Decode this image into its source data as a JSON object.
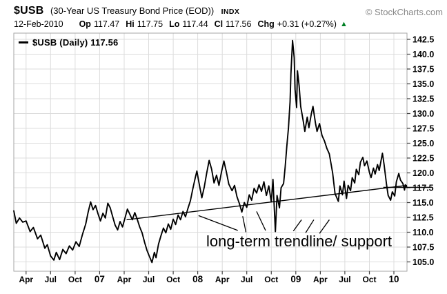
{
  "header": {
    "symbol": "$USB",
    "title": "(30-Year US Treasury Bond Price (EOD))",
    "exchange": "INDX",
    "copyright": "© StockCharts.com",
    "date": "12-Feb-2010",
    "ohlc": [
      {
        "label": "Op",
        "value": "117.47"
      },
      {
        "label": "Hi",
        "value": "117.75"
      },
      {
        "label": "Lo",
        "value": "117.44"
      },
      {
        "label": "Cl",
        "value": "117.56"
      },
      {
        "label": "Chg",
        "value": "+0.31 (+0.27%)"
      }
    ],
    "change_direction": "up",
    "up_color": "#008024"
  },
  "icons": {
    "up_triangle": "▲"
  },
  "legend": {
    "line_label": "$USB (Daily) 117.56"
  },
  "annotation": {
    "text": "long-term trendline/ support"
  },
  "chart_data": {
    "type": "line",
    "title": "$USB (Daily)",
    "last_price": 117.56,
    "x_unit": "months since mid-Feb-2006",
    "x_range": [
      0,
      48.1
    ],
    "y_label_range": [
      105.0,
      142.5
    ],
    "y_tick_step": 2.5,
    "grid": true,
    "line_color": "#000000",
    "grid_color": "#dcdcdc",
    "frame_color": "#a6a6a6",
    "tick_color": "#444444",
    "y_ticks": [
      142.5,
      140.0,
      137.5,
      135.0,
      132.5,
      130.0,
      127.5,
      125.0,
      122.5,
      120.0,
      117.5,
      115.0,
      112.5,
      110.0,
      107.5,
      105.0
    ],
    "x_ticks": [
      {
        "m": 1.5,
        "label": "Apr",
        "year": false
      },
      {
        "m": 4.5,
        "label": "Jul",
        "year": false
      },
      {
        "m": 7.5,
        "label": "Oct",
        "year": false
      },
      {
        "m": 10.5,
        "label": "07",
        "year": true
      },
      {
        "m": 13.5,
        "label": "Apr",
        "year": false
      },
      {
        "m": 16.5,
        "label": "Jul",
        "year": false
      },
      {
        "m": 19.5,
        "label": "Oct",
        "year": false
      },
      {
        "m": 22.5,
        "label": "08",
        "year": true
      },
      {
        "m": 25.5,
        "label": "Apr",
        "year": false
      },
      {
        "m": 28.5,
        "label": "Jul",
        "year": false
      },
      {
        "m": 31.5,
        "label": "Oct",
        "year": false
      },
      {
        "m": 34.5,
        "label": "09",
        "year": true
      },
      {
        "m": 37.5,
        "label": "Apr",
        "year": false
      },
      {
        "m": 40.5,
        "label": "Jul",
        "year": false
      },
      {
        "m": 43.5,
        "label": "Oct",
        "year": false
      },
      {
        "m": 46.5,
        "label": "10",
        "year": true
      }
    ],
    "series": [
      {
        "name": "$USB (Daily)",
        "color": "#000000",
        "points": [
          [
            0,
            113.6
          ],
          [
            0.3,
            111.5
          ],
          [
            0.7,
            112.4
          ],
          [
            1.1,
            111.7
          ],
          [
            1.5,
            111.9
          ],
          [
            2,
            110.1
          ],
          [
            2.4,
            110.8
          ],
          [
            2.9,
            108.9
          ],
          [
            3.3,
            109.5
          ],
          [
            3.8,
            107.3
          ],
          [
            4.1,
            107.9
          ],
          [
            4.5,
            106
          ],
          [
            4.9,
            105.3
          ],
          [
            5.2,
            106.6
          ],
          [
            5.6,
            105.4
          ],
          [
            6,
            107.1
          ],
          [
            6.4,
            106.4
          ],
          [
            6.8,
            107.7
          ],
          [
            7.2,
            107
          ],
          [
            7.6,
            108.4
          ],
          [
            8,
            107.6
          ],
          [
            8.4,
            109.6
          ],
          [
            8.8,
            111.4
          ],
          [
            9.1,
            113.4
          ],
          [
            9.4,
            115.1
          ],
          [
            9.7,
            113.8
          ],
          [
            10,
            114.5
          ],
          [
            10.3,
            113.1
          ],
          [
            10.6,
            111.9
          ],
          [
            10.9,
            113.2
          ],
          [
            11.2,
            112.4
          ],
          [
            11.5,
            114.9
          ],
          [
            11.8,
            114.1
          ],
          [
            12.1,
            112.6
          ],
          [
            12.4,
            111.2
          ],
          [
            12.7,
            110.4
          ],
          [
            13,
            111.8
          ],
          [
            13.3,
            110.9
          ],
          [
            13.6,
            112.4
          ],
          [
            13.9,
            113.9
          ],
          [
            14.2,
            113
          ],
          [
            14.5,
            112.1
          ],
          [
            14.8,
            113.3
          ],
          [
            15.1,
            112.2
          ],
          [
            15.4,
            110.9
          ],
          [
            15.7,
            109.9
          ],
          [
            16,
            108.3
          ],
          [
            16.3,
            106.9
          ],
          [
            16.6,
            105.9
          ],
          [
            16.9,
            104.9
          ],
          [
            17.2,
            106.6
          ],
          [
            17.4,
            105.7
          ],
          [
            17.7,
            108
          ],
          [
            18,
            109.4
          ],
          [
            18.3,
            110.7
          ],
          [
            18.6,
            109.9
          ],
          [
            18.9,
            111.4
          ],
          [
            19.2,
            110.5
          ],
          [
            19.5,
            112.2
          ],
          [
            19.8,
            111.3
          ],
          [
            20.1,
            112.9
          ],
          [
            20.4,
            112.1
          ],
          [
            20.7,
            113.5
          ],
          [
            21,
            112.6
          ],
          [
            21.3,
            114
          ],
          [
            21.6,
            115.3
          ],
          [
            21.9,
            117.3
          ],
          [
            22.2,
            119.2
          ],
          [
            22.4,
            120.3
          ],
          [
            22.7,
            118
          ],
          [
            23,
            115.8
          ],
          [
            23.3,
            117.6
          ],
          [
            23.6,
            120
          ],
          [
            23.9,
            122.1
          ],
          [
            24.2,
            120.6
          ],
          [
            24.5,
            118.3
          ],
          [
            24.8,
            119.6
          ],
          [
            25.1,
            117.9
          ],
          [
            25.4,
            120.1
          ],
          [
            25.7,
            122
          ],
          [
            26,
            120.2
          ],
          [
            26.3,
            118.1
          ],
          [
            26.7,
            117
          ],
          [
            27,
            117.9
          ],
          [
            27.3,
            116
          ],
          [
            27.6,
            114.8
          ],
          [
            27.9,
            113.4
          ],
          [
            28.2,
            115
          ],
          [
            28.5,
            114.2
          ],
          [
            28.8,
            116.3
          ],
          [
            29.1,
            115.4
          ],
          [
            29.4,
            117.4
          ],
          [
            29.7,
            116.6
          ],
          [
            30,
            118
          ],
          [
            30.3,
            116.9
          ],
          [
            30.6,
            118.5
          ],
          [
            30.9,
            116.2
          ],
          [
            31.2,
            117.8
          ],
          [
            31.5,
            115.1
          ],
          [
            31.7,
            118.9
          ],
          [
            32,
            110.1
          ],
          [
            32.2,
            116.2
          ],
          [
            32.5,
            114.1
          ],
          [
            32.7,
            117.5
          ],
          [
            33,
            118.2
          ],
          [
            33.2,
            121
          ],
          [
            33.4,
            124.5
          ],
          [
            33.6,
            127.6
          ],
          [
            33.8,
            132
          ],
          [
            33.9,
            136.6
          ],
          [
            34.1,
            142.3
          ],
          [
            34.3,
            139.4
          ],
          [
            34.4,
            134.1
          ],
          [
            34.6,
            131
          ],
          [
            34.7,
            137.2
          ],
          [
            34.9,
            134.7
          ],
          [
            35.1,
            131.2
          ],
          [
            35.4,
            128.8
          ],
          [
            35.6,
            127
          ],
          [
            35.9,
            129.4
          ],
          [
            36.1,
            127.6
          ],
          [
            36.4,
            130
          ],
          [
            36.6,
            131.2
          ],
          [
            36.9,
            128.4
          ],
          [
            37.1,
            127
          ],
          [
            37.4,
            128.3
          ],
          [
            37.7,
            126.3
          ],
          [
            38,
            125.4
          ],
          [
            38.3,
            124.1
          ],
          [
            38.6,
            123.2
          ],
          [
            39,
            120
          ],
          [
            39.3,
            116.5
          ],
          [
            39.7,
            115.2
          ],
          [
            39.9,
            117.8
          ],
          [
            40.2,
            116.3
          ],
          [
            40.4,
            118.6
          ],
          [
            40.7,
            115.7
          ],
          [
            40.9,
            117.9
          ],
          [
            41.2,
            117
          ],
          [
            41.4,
            119.2
          ],
          [
            41.7,
            118.3
          ],
          [
            41.9,
            120.6
          ],
          [
            42.2,
            119.7
          ],
          [
            42.4,
            121.8
          ],
          [
            42.7,
            122.6
          ],
          [
            42.9,
            121.2
          ],
          [
            43.2,
            122
          ],
          [
            43.5,
            120.1
          ],
          [
            43.7,
            119.2
          ],
          [
            44,
            120.8
          ],
          [
            44.2,
            119.8
          ],
          [
            44.5,
            121.4
          ],
          [
            44.7,
            120.4
          ],
          [
            45.1,
            123.3
          ],
          [
            45.3,
            121.4
          ],
          [
            45.6,
            118
          ],
          [
            45.8,
            116.2
          ],
          [
            46.1,
            115.4
          ],
          [
            46.3,
            116.8
          ],
          [
            46.6,
            116.1
          ],
          [
            46.8,
            118.5
          ],
          [
            47.1,
            119.9
          ],
          [
            47.3,
            118.8
          ],
          [
            47.6,
            118.2
          ],
          [
            47.8,
            117.1
          ],
          [
            47.9,
            118
          ],
          [
            48.1,
            117.56
          ]
        ]
      }
    ],
    "trendline": {
      "label": "long-term trendline/ support",
      "points": [
        [
          13.8,
          112.1
        ],
        [
          48.1,
          117.9
        ]
      ]
    },
    "last_price_marker": {
      "price": 117.56,
      "from_month": 45.2
    },
    "pointer_lines": [
      [
        [
          22.6,
          112.8
        ],
        [
          27.4,
          110.3
        ]
      ],
      [
        [
          28.0,
          112.7
        ],
        [
          28.4,
          110.0
        ]
      ],
      [
        [
          29.7,
          113.5
        ],
        [
          30.8,
          110.3
        ]
      ],
      [
        [
          34.2,
          110.2
        ],
        [
          35.2,
          112.1
        ]
      ],
      [
        [
          35.7,
          109.9
        ],
        [
          36.7,
          112.1
        ]
      ],
      [
        [
          37.4,
          109.8
        ],
        [
          38.6,
          112.1
        ]
      ]
    ]
  }
}
